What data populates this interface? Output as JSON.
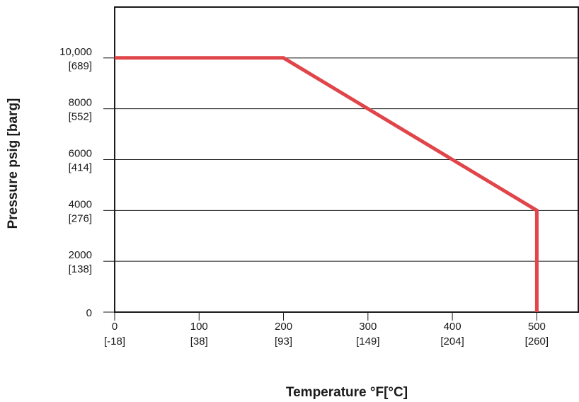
{
  "chart_data": {
    "type": "line",
    "xlabel": "Temperature °F[°C]",
    "ylabel": "Pressure psig [barg]",
    "xlim": [
      0,
      550
    ],
    "ylim": [
      0,
      12000
    ],
    "grid": "horizontal",
    "x_ticks": [
      {
        "value": 0,
        "label": "0",
        "sublabel": "[-18]"
      },
      {
        "value": 100,
        "label": "100",
        "sublabel": "[38]"
      },
      {
        "value": 200,
        "label": "200",
        "sublabel": "[93]"
      },
      {
        "value": 300,
        "label": "300",
        "sublabel": "[149]"
      },
      {
        "value": 400,
        "label": "400",
        "sublabel": "[204]"
      },
      {
        "value": 500,
        "label": "500",
        "sublabel": "[260]"
      }
    ],
    "y_ticks": [
      {
        "value": 0,
        "label": "0",
        "sublabel": ""
      },
      {
        "value": 2000,
        "label": "2000",
        "sublabel": "[138]"
      },
      {
        "value": 4000,
        "label": "4000",
        "sublabel": "[276]"
      },
      {
        "value": 6000,
        "label": "6000",
        "sublabel": "[414]"
      },
      {
        "value": 8000,
        "label": "8000",
        "sublabel": "[552]"
      },
      {
        "value": 10000,
        "label": "10,000",
        "sublabel": "[689]"
      }
    ],
    "series": [
      {
        "color": "#e0454a",
        "points": [
          {
            "x": 0,
            "y": 10000
          },
          {
            "x": 200,
            "y": 10000
          },
          {
            "x": 500,
            "y": 4000
          },
          {
            "x": 500,
            "y": 0
          }
        ]
      }
    ]
  }
}
